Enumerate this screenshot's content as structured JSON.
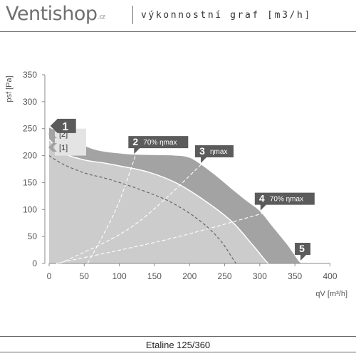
{
  "header": {
    "brand": "Ventishop",
    "brand_suffix": ".cz",
    "subtitle": "výkonnostní graf [m3/h]"
  },
  "footer": {
    "model": "Etaline 125/360"
  },
  "colors": {
    "region_dark": "#a3a3a3",
    "region_light": "#cccccc",
    "marker": "#5b5b5b",
    "axis": "#8a8a8a",
    "curve_light": "#ffffff",
    "curve_dark": "#666666"
  },
  "chart_data": {
    "type": "line",
    "xlabel": "qV [m³/h]",
    "ylabel": "psf [Pa]",
    "xlim": [
      0,
      400
    ],
    "ylim": [
      0,
      350
    ],
    "x_ticks": [
      0,
      50,
      100,
      150,
      200,
      250,
      300,
      350,
      400
    ],
    "y_ticks": [
      0,
      50,
      100,
      150,
      200,
      250,
      300,
      350
    ],
    "grid": false,
    "regions": [
      {
        "name": "1",
        "points": [
          [
            0,
            252
          ],
          [
            20,
            240
          ],
          [
            40,
            225
          ],
          [
            60,
            213
          ],
          [
            80,
            207
          ],
          [
            100,
            204
          ],
          [
            120,
            202
          ],
          [
            150,
            201
          ],
          [
            180,
            200
          ],
          [
            200,
            196
          ],
          [
            220,
            180
          ],
          [
            240,
            160
          ],
          [
            260,
            138
          ],
          [
            280,
            117
          ],
          [
            300,
            97
          ],
          [
            320,
            65
          ],
          [
            340,
            33
          ],
          [
            355,
            5
          ],
          [
            360,
            0
          ]
        ]
      },
      {
        "name": "[2]",
        "points": [
          [
            0,
            230
          ],
          [
            20,
            205
          ],
          [
            50,
            192
          ],
          [
            80,
            186
          ],
          [
            100,
            181
          ],
          [
            140,
            170
          ],
          [
            180,
            150
          ],
          [
            220,
            118
          ],
          [
            260,
            78
          ],
          [
            290,
            34
          ],
          [
            305,
            10
          ],
          [
            312,
            0
          ]
        ]
      },
      {
        "name": "[1]",
        "points": [
          [
            0,
            200
          ],
          [
            20,
            184
          ],
          [
            50,
            168
          ],
          [
            80,
            158
          ],
          [
            110,
            146
          ],
          [
            140,
            132
          ],
          [
            170,
            116
          ],
          [
            200,
            93
          ],
          [
            225,
            68
          ],
          [
            245,
            41
          ],
          [
            260,
            12
          ],
          [
            266,
            0
          ]
        ]
      }
    ],
    "curves": [
      {
        "name": "[2]",
        "style": "solid",
        "points": [
          [
            0,
            230
          ],
          [
            20,
            205
          ],
          [
            50,
            192
          ],
          [
            80,
            186
          ],
          [
            100,
            181
          ],
          [
            140,
            170
          ],
          [
            180,
            150
          ],
          [
            220,
            118
          ],
          [
            260,
            78
          ],
          [
            290,
            34
          ],
          [
            305,
            10
          ],
          [
            312,
            0
          ]
        ]
      },
      {
        "name": "[1]",
        "style": "dashed",
        "points": [
          [
            0,
            200
          ],
          [
            20,
            184
          ],
          [
            50,
            168
          ],
          [
            80,
            158
          ],
          [
            110,
            146
          ],
          [
            140,
            132
          ],
          [
            170,
            116
          ],
          [
            200,
            93
          ],
          [
            225,
            68
          ],
          [
            245,
            41
          ],
          [
            260,
            12
          ],
          [
            266,
            0
          ]
        ]
      }
    ],
    "efficiency_lines": [
      {
        "name": "2",
        "points": [
          [
            55,
            0
          ],
          [
            95,
            100
          ],
          [
            123,
            200
          ]
        ]
      },
      {
        "name": "3",
        "points": [
          [
            15,
            0
          ],
          [
            120,
            70
          ],
          [
            222,
            190
          ]
        ]
      },
      {
        "name": "4",
        "points": [
          [
            10,
            0
          ],
          [
            170,
            45
          ],
          [
            310,
            95
          ]
        ]
      }
    ],
    "markers": [
      {
        "label": "1",
        "sublabel": "",
        "x": 20,
        "y": 255
      },
      {
        "label": "2",
        "sublabel": "70% ηmax",
        "x": 123,
        "y": 225
      },
      {
        "label": "3",
        "sublabel": "ηmax",
        "x": 218,
        "y": 208
      },
      {
        "label": "4",
        "sublabel": "70% ηmax",
        "x": 303,
        "y": 120
      },
      {
        "label": "5",
        "sublabel": "",
        "x": 360,
        "y": 27
      }
    ],
    "point_labels": [
      {
        "label": "[2]",
        "x": 20,
        "y": 235
      },
      {
        "label": "[1]",
        "x": 20,
        "y": 210
      }
    ]
  }
}
